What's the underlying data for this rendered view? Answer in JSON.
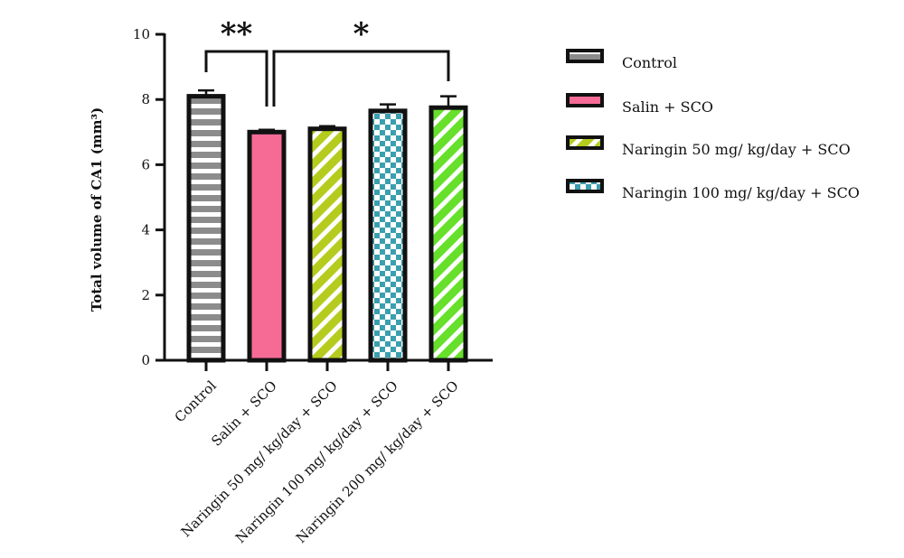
{
  "chart_data": {
    "type": "bar",
    "title": "",
    "xlabel": "",
    "ylabel": "Total volume of CA1 (mm³)",
    "ylim": [
      0,
      10
    ],
    "yticks": [
      0,
      2,
      4,
      6,
      8,
      10
    ],
    "categories": [
      "Control",
      "Salin + SCO",
      "Naringin 50 mg/ kg/day + SCO",
      "Naringin 100 mg/ kg/day + SCO",
      "Naringin 200 mg/ kg/day + SCO"
    ],
    "values": [
      8.1,
      7.0,
      7.1,
      7.65,
      7.75
    ],
    "errors": [
      0.18,
      0.07,
      0.08,
      0.2,
      0.35
    ],
    "bar_styles": [
      {
        "pattern": "horizontal-stripes",
        "color": "#8c8c8c"
      },
      {
        "pattern": "solid",
        "color": "#f56b96"
      },
      {
        "pattern": "diagonal-stripes",
        "color": "#b5cc1e"
      },
      {
        "pattern": "checker",
        "color": "#3a9faf"
      },
      {
        "pattern": "diagonal-stripes",
        "color": "#66e02a"
      }
    ],
    "significance": [
      {
        "label": "**",
        "from": 0,
        "to": 1
      },
      {
        "label": "*",
        "from": 1,
        "to": 4
      }
    ],
    "legend": {
      "position": "right",
      "entries": [
        {
          "label": "Control",
          "style": 0
        },
        {
          "label": "Salin + SCO",
          "style": 1
        },
        {
          "label": "Naringin 50 mg/ kg/day + SCO",
          "style": 2
        },
        {
          "label": "Naringin 100 mg/ kg/day + SCO",
          "style": 3
        }
      ]
    },
    "grid": false
  }
}
